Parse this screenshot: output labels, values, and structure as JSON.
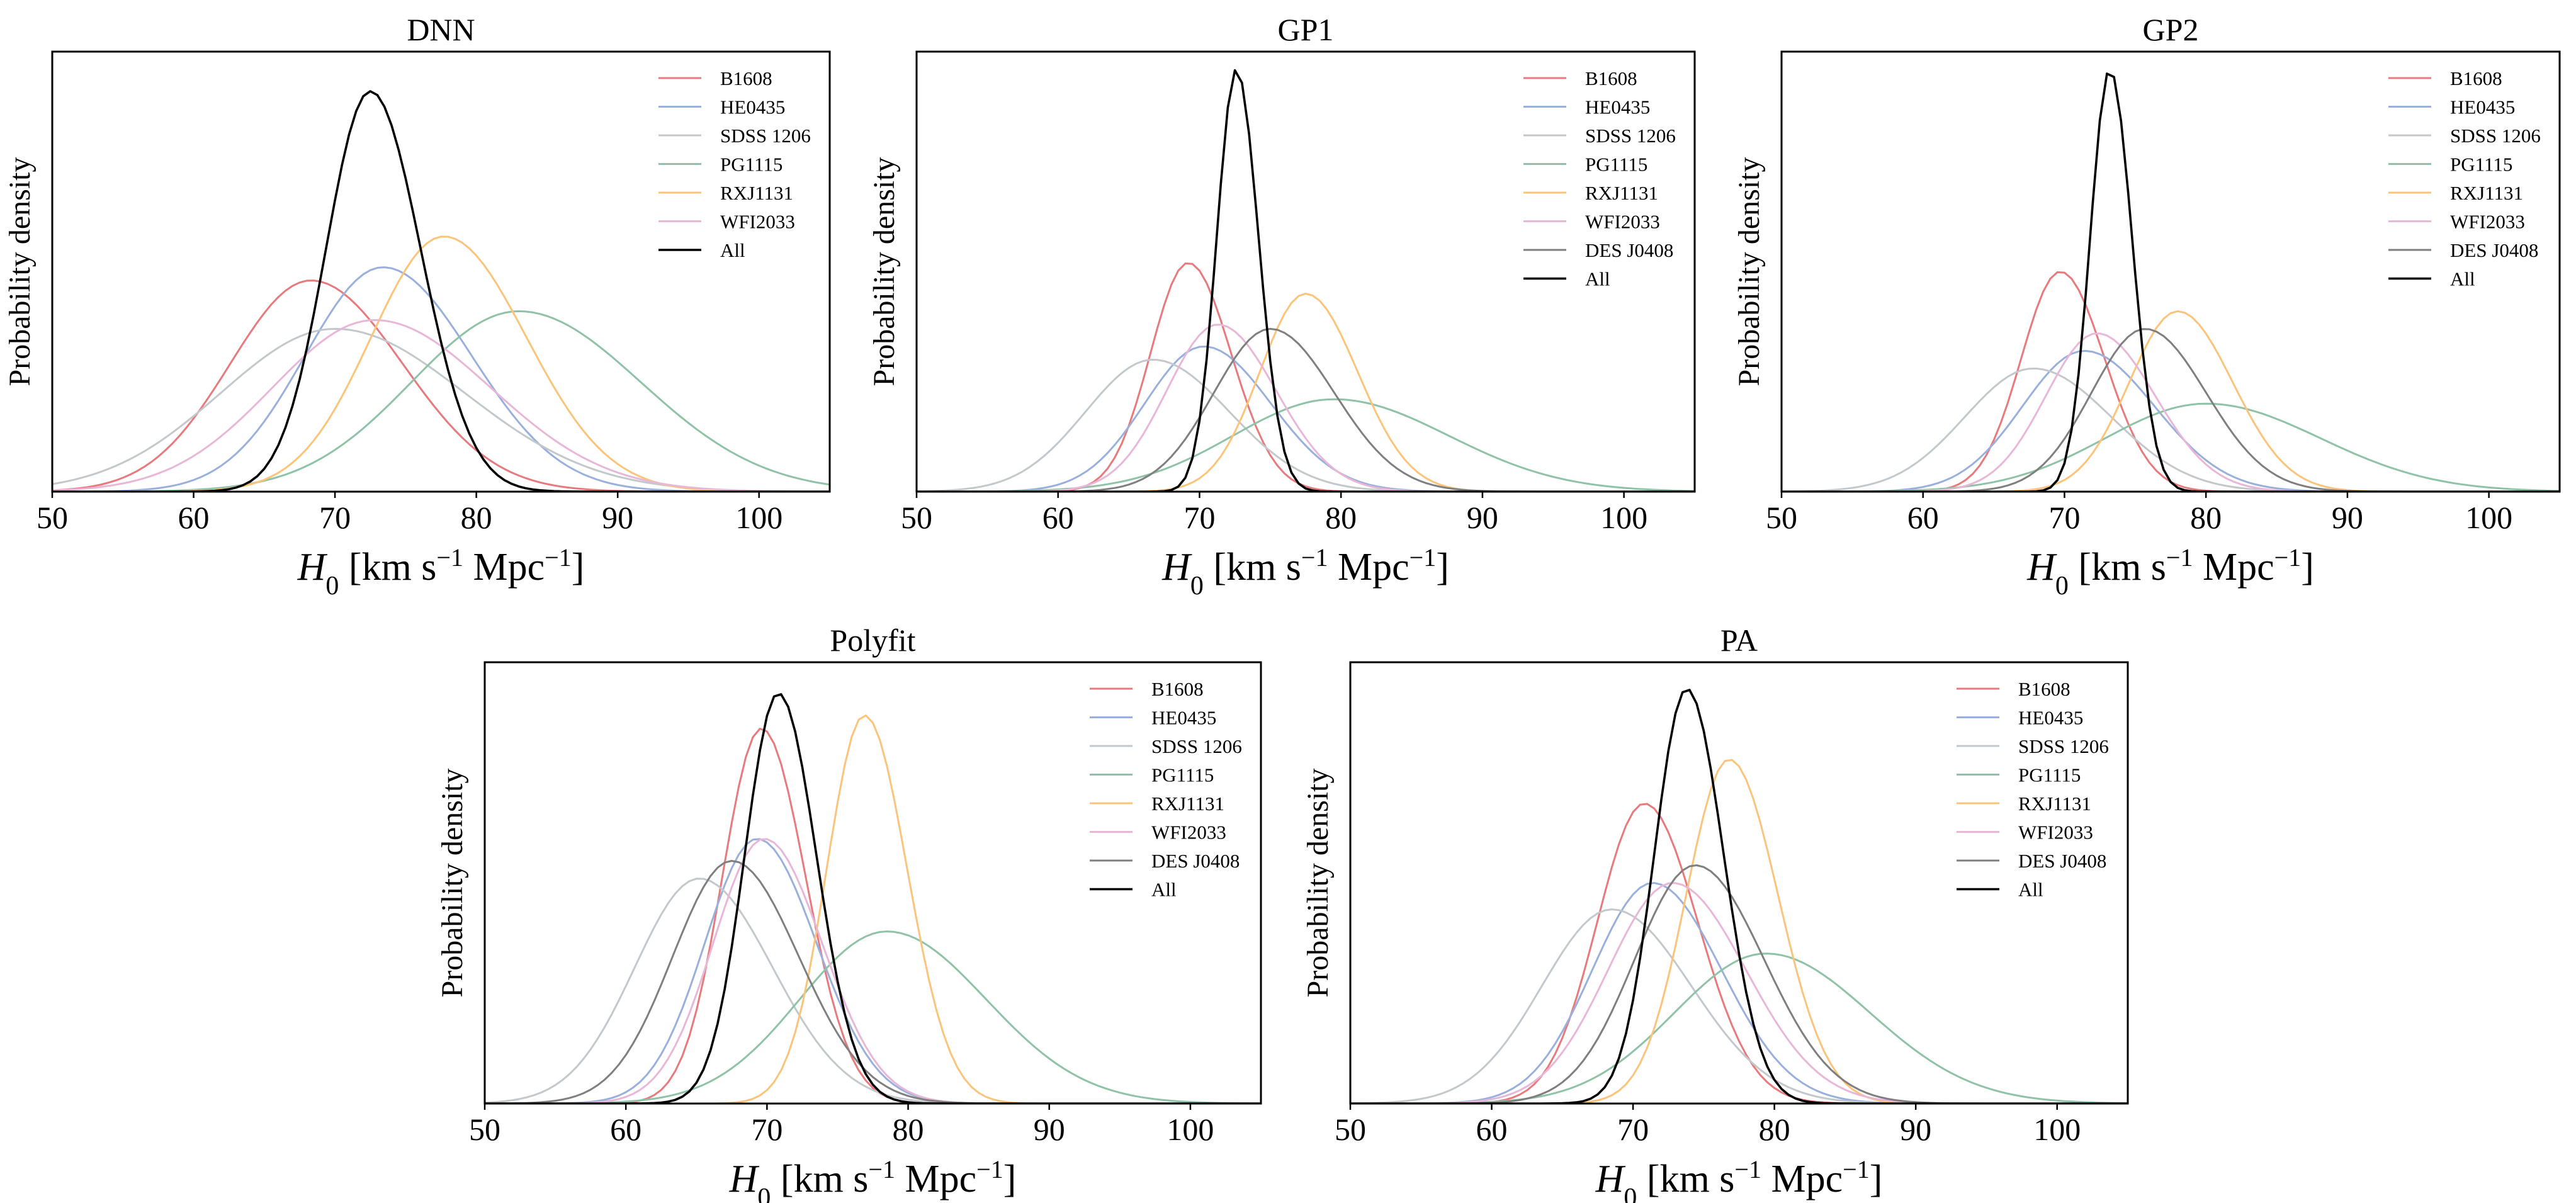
{
  "figure": {
    "x_axis_label": {
      "symbol": "H",
      "subscript": "0",
      "units_open": " [km s",
      "exp1": "−1",
      "mid": " Mpc",
      "exp2": "−1",
      "units_close": "]"
    },
    "y_axis_label": "Probability density"
  },
  "series_styles": {
    "B1608": "#e8797c",
    "HE0435": "#9ab0dc",
    "SDSS 1206": "#c3c8cc",
    "PG1115": "#8fc2a6",
    "RXJ1131": "#fbc47a",
    "WFI2033": "#e8b7d7",
    "DES J0408": "#7f7f7f",
    "All": "#000000"
  },
  "chart_data": [
    {
      "type": "line",
      "title": "DNN",
      "xlabel": "H0 [km s^-1 Mpc^-1]",
      "ylabel": "Probability density",
      "xlim": [
        50,
        105
      ],
      "xticks": [
        50,
        60,
        70,
        80,
        90,
        100
      ],
      "ylim": [
        0,
        1
      ],
      "y_ticks_shown": false,
      "legend": "top-right",
      "legend_entries": [
        "B1608",
        "HE0435",
        "SDSS 1206",
        "PG1115",
        "RXJ1131",
        "WFI2033",
        "All"
      ],
      "series": [
        {
          "name": "B1608",
          "mode": 68.3,
          "sigma": 6.0,
          "peak_rel_density": 0.48
        },
        {
          "name": "HE0435",
          "mode": 73.4,
          "sigma": 5.8,
          "peak_rel_density": 0.51
        },
        {
          "name": "SDSS 1206",
          "mode": 70.0,
          "sigma": 8.5,
          "peak_rel_density": 0.37
        },
        {
          "name": "PG1115",
          "mode": 83.0,
          "sigma": 8.0,
          "peak_rel_density": 0.41
        },
        {
          "name": "RXJ1131",
          "mode": 77.7,
          "sigma": 5.4,
          "peak_rel_density": 0.58
        },
        {
          "name": "WFI2033",
          "mode": 72.8,
          "sigma": 7.6,
          "peak_rel_density": 0.39
        },
        {
          "name": "All",
          "mode": 72.5,
          "sigma": 3.3,
          "peak_rel_density": 0.91
        }
      ]
    },
    {
      "type": "line",
      "title": "GP1",
      "xlabel": "H0 [km s^-1 Mpc^-1]",
      "ylabel": "Probability density",
      "xlim": [
        50,
        105
      ],
      "xticks": [
        50,
        60,
        70,
        80,
        90,
        100
      ],
      "ylim": [
        0,
        1
      ],
      "y_ticks_shown": false,
      "legend": "top-right",
      "legend_entries": [
        "B1608",
        "HE0435",
        "SDSS 1206",
        "PG1115",
        "RXJ1131",
        "WFI2033",
        "DES J0408",
        "All"
      ],
      "series": [
        {
          "name": "B1608",
          "mode": 69.2,
          "sigma": 2.8,
          "peak_rel_density": 0.52
        },
        {
          "name": "HE0435",
          "mode": 70.3,
          "sigma": 4.4,
          "peak_rel_density": 0.33
        },
        {
          "name": "SDSS 1206",
          "mode": 66.7,
          "sigma": 5.0,
          "peak_rel_density": 0.3
        },
        {
          "name": "PG1115",
          "mode": 79.5,
          "sigma": 7.5,
          "peak_rel_density": 0.21
        },
        {
          "name": "RXJ1131",
          "mode": 77.5,
          "sigma": 3.4,
          "peak_rel_density": 0.45
        },
        {
          "name": "WFI2033",
          "mode": 71.3,
          "sigma": 3.8,
          "peak_rel_density": 0.38
        },
        {
          "name": "DES J0408",
          "mode": 75.0,
          "sigma": 4.2,
          "peak_rel_density": 0.37
        },
        {
          "name": "All",
          "mode": 72.6,
          "sigma": 1.45,
          "peak_rel_density": 0.96
        }
      ]
    },
    {
      "type": "line",
      "title": "GP2",
      "xlabel": "H0 [km s^-1 Mpc^-1]",
      "ylabel": "Probability density",
      "xlim": [
        50,
        105
      ],
      "xticks": [
        50,
        60,
        70,
        80,
        90,
        100
      ],
      "ylim": [
        0,
        1
      ],
      "y_ticks_shown": false,
      "legend": "top-right",
      "legend_entries": [
        "B1608",
        "HE0435",
        "SDSS 1206",
        "PG1115",
        "RXJ1131",
        "WFI2033",
        "DES J0408",
        "All"
      ],
      "series": [
        {
          "name": "B1608",
          "mode": 69.7,
          "sigma": 2.9,
          "peak_rel_density": 0.5
        },
        {
          "name": "HE0435",
          "mode": 71.4,
          "sigma": 4.6,
          "peak_rel_density": 0.32
        },
        {
          "name": "SDSS 1206",
          "mode": 67.8,
          "sigma": 5.1,
          "peak_rel_density": 0.28
        },
        {
          "name": "PG1115",
          "mode": 80.0,
          "sigma": 7.5,
          "peak_rel_density": 0.2
        },
        {
          "name": "RXJ1131",
          "mode": 78.0,
          "sigma": 3.6,
          "peak_rel_density": 0.41
        },
        {
          "name": "WFI2033",
          "mode": 72.3,
          "sigma": 3.8,
          "peak_rel_density": 0.36
        },
        {
          "name": "DES J0408",
          "mode": 75.7,
          "sigma": 4.0,
          "peak_rel_density": 0.37
        },
        {
          "name": "All",
          "mode": 73.2,
          "sigma": 1.45,
          "peak_rel_density": 0.96
        }
      ]
    },
    {
      "type": "line",
      "title": "Polyfit",
      "xlabel": "H0 [km s^-1 Mpc^-1]",
      "ylabel": "Probability density",
      "xlim": [
        50,
        105
      ],
      "xticks": [
        50,
        60,
        70,
        80,
        90,
        100
      ],
      "ylim": [
        0,
        1
      ],
      "y_ticks_shown": false,
      "legend": "top-right",
      "legend_entries": [
        "B1608",
        "HE0435",
        "SDSS 1206",
        "PG1115",
        "RXJ1131",
        "WFI2033",
        "DES J0408",
        "All"
      ],
      "series": [
        {
          "name": "B1608",
          "mode": 69.6,
          "sigma": 2.9,
          "peak_rel_density": 0.85
        },
        {
          "name": "HE0435",
          "mode": 69.3,
          "sigma": 3.9,
          "peak_rel_density": 0.6
        },
        {
          "name": "SDSS 1206",
          "mode": 65.2,
          "sigma": 4.8,
          "peak_rel_density": 0.51
        },
        {
          "name": "PG1115",
          "mode": 78.5,
          "sigma": 6.5,
          "peak_rel_density": 0.39
        },
        {
          "name": "RXJ1131",
          "mode": 76.9,
          "sigma": 2.8,
          "peak_rel_density": 0.88
        },
        {
          "name": "WFI2033",
          "mode": 69.8,
          "sigma": 3.8,
          "peak_rel_density": 0.6
        },
        {
          "name": "DES J0408",
          "mode": 67.5,
          "sigma": 4.4,
          "peak_rel_density": 0.55
        },
        {
          "name": "All",
          "mode": 70.8,
          "sigma": 2.5,
          "peak_rel_density": 0.93
        }
      ]
    },
    {
      "type": "line",
      "title": "PA",
      "xlabel": "H0 [km s^-1 Mpc^-1]",
      "ylabel": "Probability density",
      "xlim": [
        50,
        105
      ],
      "xticks": [
        50,
        60,
        70,
        80,
        90,
        100
      ],
      "ylim": [
        0,
        1
      ],
      "y_ticks_shown": false,
      "legend": "top-right",
      "legend_entries": [
        "B1608",
        "HE0435",
        "SDSS 1206",
        "PG1115",
        "RXJ1131",
        "WFI2033",
        "DES J0408",
        "All"
      ],
      "series": [
        {
          "name": "B1608",
          "mode": 70.8,
          "sigma": 3.5,
          "peak_rel_density": 0.68
        },
        {
          "name": "HE0435",
          "mode": 71.4,
          "sigma": 4.5,
          "peak_rel_density": 0.5
        },
        {
          "name": "SDSS 1206",
          "mode": 68.5,
          "sigma": 5.2,
          "peak_rel_density": 0.44
        },
        {
          "name": "PG1115",
          "mode": 79.4,
          "sigma": 6.8,
          "peak_rel_density": 0.34
        },
        {
          "name": "RXJ1131",
          "mode": 76.8,
          "sigma": 3.2,
          "peak_rel_density": 0.78
        },
        {
          "name": "WFI2033",
          "mode": 72.8,
          "sigma": 4.8,
          "peak_rel_density": 0.5
        },
        {
          "name": "DES J0408",
          "mode": 74.4,
          "sigma": 4.5,
          "peak_rel_density": 0.54
        },
        {
          "name": "All",
          "mode": 73.8,
          "sigma": 2.4,
          "peak_rel_density": 0.94
        }
      ]
    }
  ]
}
